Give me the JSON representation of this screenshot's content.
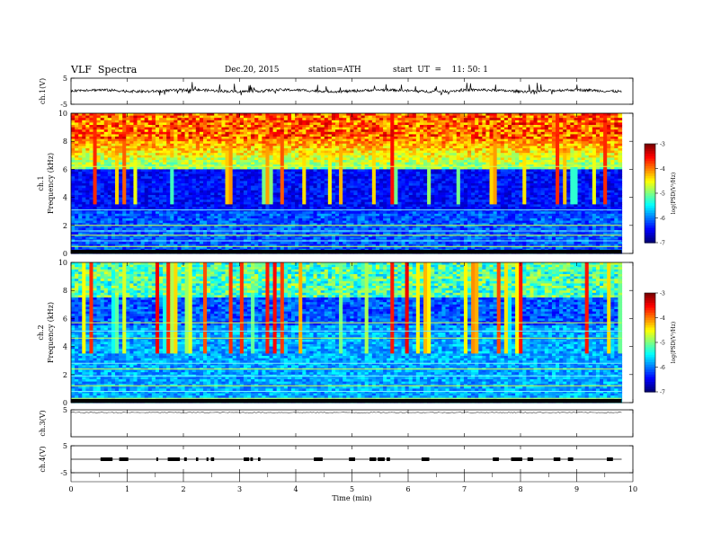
{
  "header": {
    "title": "VLF  Spectra",
    "date": "Dec.20, 2015",
    "station": "station=ATH",
    "start": "start  UT  =    11: 50: 1"
  },
  "chart_data": [
    {
      "type": "line",
      "panel": "ch1-waveform",
      "ylabel": "ch.1(V)",
      "y_ticks": [
        "5",
        "-5"
      ],
      "ylim": [
        -5,
        5
      ]
    },
    {
      "type": "heatmap",
      "panel": "ch1-spectrogram",
      "ylabel_line1": "ch.1",
      "ylabel_line2": "Frequency  (kHz)",
      "y_ticks": [
        "0",
        "2",
        "4",
        "6",
        "8",
        "10"
      ],
      "ylim": [
        0,
        10
      ],
      "colorbar": {
        "label": "log(PSD(V²/Hz)",
        "ticks": [
          "-3",
          "-4",
          "-5",
          "-6",
          "-7"
        ],
        "range": [
          -7,
          -3
        ]
      }
    },
    {
      "type": "heatmap",
      "panel": "ch2-spectrogram",
      "ylabel_line1": "ch.2",
      "ylabel_line2": "Frequency  (kHz)",
      "y_ticks": [
        "0",
        "2",
        "4",
        "6",
        "8",
        "10"
      ],
      "ylim": [
        0,
        10
      ],
      "colorbar": {
        "label": "log(PSD(V²/Hz)",
        "ticks": [
          "-3",
          "-4",
          "-5",
          "-6",
          "-7"
        ],
        "range": [
          -7,
          -3
        ]
      }
    },
    {
      "type": "line",
      "panel": "ch3-waveform",
      "ylabel": "ch.3(V)",
      "y_ticks": [
        "5"
      ],
      "ylim": [
        -5,
        5
      ]
    },
    {
      "type": "line",
      "panel": "ch4-waveform",
      "ylabel": "ch.4(V)",
      "y_ticks": [
        "5",
        "-5"
      ],
      "ylim": [
        -5,
        5
      ]
    }
  ],
  "x_axis": {
    "label": "Time  (min)",
    "ticks": [
      "0",
      "1",
      "2",
      "3",
      "4",
      "5",
      "6",
      "7",
      "8",
      "9",
      "10"
    ],
    "range": [
      0,
      10
    ],
    "data_end": 9.8
  }
}
